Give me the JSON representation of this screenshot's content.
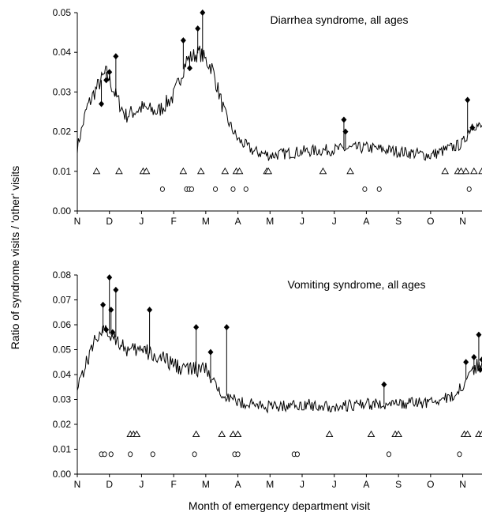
{
  "shared_ylabel": "Ratio of syndrome visits / 'other' visits",
  "shared_xlabel": "Month of emergency department visit",
  "colors": {
    "line": "#000000",
    "marker": "#000000",
    "axis": "#000000"
  },
  "chart_data": [
    {
      "type": "line",
      "title": "Diarrhea syndrome, all ages",
      "xlabel": "Month of emergency department visit",
      "ylabel": "Ratio of syndrome visits / 'other' visits",
      "ylim": [
        0,
        0.05
      ],
      "yticks": [
        0.0,
        0.01,
        0.02,
        0.03,
        0.04,
        0.05
      ],
      "ytick_labels": [
        "0.00",
        "0.01",
        "0.02",
        "0.03",
        "0.04",
        "0.05"
      ],
      "xlim": [
        0,
        12.6
      ],
      "months": [
        "N",
        "D",
        "J",
        "F",
        "M",
        "A",
        "M",
        "J",
        "J",
        "A",
        "S",
        "O",
        "N"
      ],
      "anchors": [
        [
          0,
          0.016
        ],
        [
          0.3,
          0.026
        ],
        [
          0.6,
          0.031
        ],
        [
          0.9,
          0.035
        ],
        [
          1.2,
          0.029
        ],
        [
          1.5,
          0.024
        ],
        [
          2.0,
          0.026
        ],
        [
          2.5,
          0.025
        ],
        [
          3.0,
          0.029
        ],
        [
          3.4,
          0.038
        ],
        [
          3.8,
          0.04
        ],
        [
          4.2,
          0.036
        ],
        [
          4.6,
          0.024
        ],
        [
          5.0,
          0.018
        ],
        [
          5.5,
          0.015
        ],
        [
          6.0,
          0.014
        ],
        [
          7.0,
          0.015
        ],
        [
          8.0,
          0.0155
        ],
        [
          9.0,
          0.016
        ],
        [
          10.0,
          0.015
        ],
        [
          11.0,
          0.014
        ],
        [
          12.0,
          0.017
        ],
        [
          12.3,
          0.022
        ],
        [
          12.6,
          0.021
        ]
      ],
      "signals": [
        [
          0.75,
          0.027
        ],
        [
          0.9,
          0.033
        ],
        [
          1.0,
          0.035
        ],
        [
          1.2,
          0.039
        ],
        [
          3.3,
          0.043
        ],
        [
          3.5,
          0.036
        ],
        [
          3.75,
          0.046
        ],
        [
          3.9,
          0.05
        ],
        [
          8.3,
          0.023
        ],
        [
          8.35,
          0.02
        ],
        [
          12.15,
          0.028
        ],
        [
          12.3,
          0.021
        ]
      ],
      "triangles": [
        0.6,
        1.3,
        2.05,
        2.15,
        3.3,
        3.85,
        4.6,
        4.95,
        5.05,
        5.9,
        5.95,
        7.65,
        8.5,
        11.45,
        11.85,
        11.95,
        12.1,
        12.35,
        12.6
      ],
      "triangle_level": 0.01,
      "circles": [
        2.65,
        3.4,
        3.48,
        3.56,
        4.3,
        4.85,
        5.25,
        8.95,
        9.4,
        12.2
      ],
      "circle_level": 0.0055
    },
    {
      "type": "line",
      "title": "Vomiting syndrome, all ages",
      "xlabel": "Month of emergency department visit",
      "ylabel": "Ratio of syndrome visits / 'other' visits",
      "ylim": [
        0,
        0.08
      ],
      "yticks": [
        0.0,
        0.01,
        0.02,
        0.03,
        0.04,
        0.05,
        0.06,
        0.07,
        0.08
      ],
      "ytick_labels": [
        "0.00",
        "0.01",
        "0.02",
        "0.03",
        "0.04",
        "0.05",
        "0.06",
        "0.07",
        "0.08"
      ],
      "xlim": [
        0,
        12.6
      ],
      "months": [
        "N",
        "D",
        "J",
        "F",
        "M",
        "A",
        "M",
        "J",
        "J",
        "A",
        "S",
        "O",
        "N"
      ],
      "anchors": [
        [
          0,
          0.036
        ],
        [
          0.3,
          0.045
        ],
        [
          0.6,
          0.056
        ],
        [
          0.9,
          0.057
        ],
        [
          1.2,
          0.055
        ],
        [
          1.6,
          0.049
        ],
        [
          2.0,
          0.05
        ],
        [
          2.5,
          0.047
        ],
        [
          3.0,
          0.044
        ],
        [
          3.5,
          0.042
        ],
        [
          4.0,
          0.042
        ],
        [
          4.3,
          0.035
        ],
        [
          4.7,
          0.031
        ],
        [
          5.0,
          0.029
        ],
        [
          6.0,
          0.027
        ],
        [
          7.0,
          0.028
        ],
        [
          8.0,
          0.027
        ],
        [
          9.0,
          0.028
        ],
        [
          10.0,
          0.028
        ],
        [
          11.0,
          0.029
        ],
        [
          11.7,
          0.031
        ],
        [
          12.0,
          0.036
        ],
        [
          12.3,
          0.042
        ],
        [
          12.6,
          0.044
        ]
      ],
      "signals": [
        [
          0.8,
          0.068
        ],
        [
          0.9,
          0.058
        ],
        [
          1.0,
          0.079
        ],
        [
          1.05,
          0.066
        ],
        [
          1.1,
          0.057
        ],
        [
          1.2,
          0.074
        ],
        [
          2.25,
          0.066
        ],
        [
          3.7,
          0.059
        ],
        [
          4.15,
          0.049
        ],
        [
          4.65,
          0.059
        ],
        [
          9.55,
          0.036
        ],
        [
          12.1,
          0.045
        ],
        [
          12.35,
          0.047
        ],
        [
          12.5,
          0.056
        ],
        [
          12.55,
          0.042
        ],
        [
          12.6,
          0.046
        ]
      ],
      "triangles": [
        1.65,
        1.75,
        1.85,
        3.7,
        4.5,
        4.85,
        5.0,
        7.85,
        9.15,
        9.9,
        10.0,
        12.05,
        12.15,
        12.5,
        12.6
      ],
      "triangle_level": 0.016,
      "circles": [
        0.75,
        0.85,
        1.05,
        1.65,
        2.35,
        3.65,
        4.9,
        5.0,
        6.75,
        6.85,
        9.7,
        11.9
      ],
      "circle_level": 0.008
    }
  ]
}
